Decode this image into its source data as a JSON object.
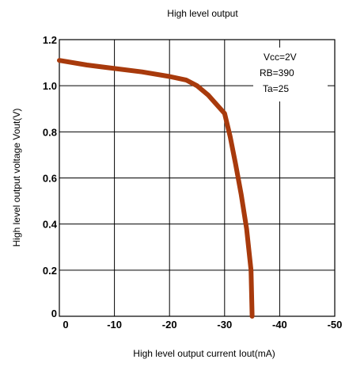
{
  "chart_data": {
    "type": "line",
    "title": "High level output",
    "xlabel": "High level output current  Iout(mA)",
    "ylabel": "High level output voltage Vout(V)",
    "xlim": [
      0,
      -50
    ],
    "ylim": [
      0,
      1.2
    ],
    "x_ticks": [
      "0",
      "-10",
      "-20",
      "-30",
      "-40",
      "-50"
    ],
    "y_ticks": [
      "0",
      "0.2",
      "0.4",
      "0.6",
      "0.8",
      "1.0",
      "1.2"
    ],
    "grid": true,
    "annotations": [
      "Vcc=2V",
      "RB=390",
      "Ta=25"
    ],
    "line_color": "#a83a0c",
    "series": [
      {
        "x": [
          0,
          -5,
          -10,
          -15,
          -20,
          -23,
          -25,
          -27,
          -30,
          -31,
          -32,
          -33,
          -34,
          -34.8,
          -35
        ],
        "y": [
          1.11,
          1.09,
          1.075,
          1.06,
          1.04,
          1.025,
          1.0,
          0.96,
          0.88,
          0.78,
          0.66,
          0.53,
          0.38,
          0.2,
          0.0
        ]
      }
    ]
  }
}
